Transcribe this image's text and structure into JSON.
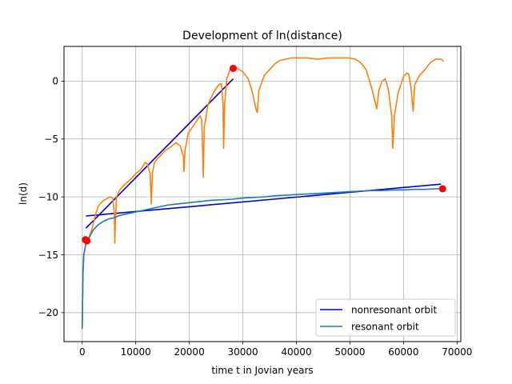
{
  "chart_data": {
    "type": "line",
    "title": "Development of ln(distance)",
    "xlabel": "time t in Jovian years",
    "ylabel": "ln(d)",
    "xlim": [
      -3400,
      70700
    ],
    "ylim": [
      -22.5,
      3.0
    ],
    "xticks": [
      0,
      10000,
      20000,
      30000,
      40000,
      50000,
      60000,
      70000
    ],
    "xtick_labels": [
      "0",
      "10000",
      "20000",
      "30000",
      "40000",
      "50000",
      "60000",
      "70000"
    ],
    "yticks": [
      -20,
      -15,
      -10,
      -5,
      0
    ],
    "ytick_labels": [
      "−20",
      "−15",
      "−10",
      "−5",
      "0"
    ],
    "grid": true,
    "legend_position": "lower-right",
    "legend": [
      {
        "label": "nonresonant orbit",
        "color": "#0000cc"
      },
      {
        "label": "resonant orbit",
        "color": "#1f77b4"
      }
    ],
    "series": [
      {
        "kind": "fit-line",
        "color": "#0000cc",
        "points": [
          [
            700,
            -12.7
          ],
          [
            28200,
            0.2
          ]
        ]
      },
      {
        "kind": "fit-line",
        "color": "#0000cc",
        "points": [
          [
            700,
            -11.65
          ],
          [
            67000,
            -8.9
          ]
        ]
      },
      {
        "kind": "curve",
        "color": "#ff7f0e",
        "points": [
          [
            0,
            -21.4
          ],
          [
            150,
            -16.5
          ],
          [
            300,
            -15.0
          ],
          [
            700,
            -14.0
          ],
          [
            1200,
            -13.6
          ],
          [
            1800,
            -12.8
          ],
          [
            2500,
            -11.5
          ],
          [
            3000,
            -10.8
          ],
          [
            3500,
            -10.5
          ],
          [
            4000,
            -10.3
          ],
          [
            4800,
            -10.1
          ],
          [
            5200,
            -10.0
          ],
          [
            5700,
            -10.1
          ],
          [
            6000,
            -11.5
          ],
          [
            6100,
            -14.0
          ],
          [
            6200,
            -12.0
          ],
          [
            6400,
            -10.0
          ],
          [
            7000,
            -9.4
          ],
          [
            8000,
            -8.9
          ],
          [
            9000,
            -8.5
          ],
          [
            10000,
            -8.0
          ],
          [
            11000,
            -7.6
          ],
          [
            11800,
            -7.0
          ],
          [
            12200,
            -7.2
          ],
          [
            12700,
            -8.0
          ],
          [
            12900,
            -10.6
          ],
          [
            13100,
            -8.0
          ],
          [
            13500,
            -7.0
          ],
          [
            14500,
            -6.5
          ],
          [
            15500,
            -6.0
          ],
          [
            16500,
            -5.7
          ],
          [
            17500,
            -5.3
          ],
          [
            18300,
            -5.6
          ],
          [
            18900,
            -6.5
          ],
          [
            19000,
            -7.8
          ],
          [
            19200,
            -6.0
          ],
          [
            19800,
            -4.5
          ],
          [
            21000,
            -3.7
          ],
          [
            22000,
            -3.0
          ],
          [
            22300,
            -3.3
          ],
          [
            22500,
            -6.0
          ],
          [
            22600,
            -8.3
          ],
          [
            22800,
            -4.0
          ],
          [
            23500,
            -2.0
          ],
          [
            24500,
            -1.0
          ],
          [
            25500,
            -0.3
          ],
          [
            26000,
            -0.2
          ],
          [
            26300,
            -2.0
          ],
          [
            26400,
            -5.8
          ],
          [
            26600,
            -2.0
          ],
          [
            27000,
            0.2
          ],
          [
            27600,
            1.0
          ],
          [
            28200,
            1.1
          ],
          [
            29000,
            1.1
          ],
          [
            30000,
            0.8
          ],
          [
            31000,
            0.2
          ],
          [
            31800,
            -1.0
          ],
          [
            32500,
            -2.5
          ],
          [
            32700,
            -2.7
          ],
          [
            33000,
            -0.8
          ],
          [
            34000,
            0.5
          ],
          [
            35000,
            1.0
          ],
          [
            36000,
            1.5
          ],
          [
            37000,
            1.8
          ],
          [
            38000,
            1.9
          ],
          [
            39000,
            2.0
          ],
          [
            40000,
            2.0
          ],
          [
            42000,
            2.0
          ],
          [
            44000,
            1.9
          ],
          [
            46000,
            2.0
          ],
          [
            48000,
            2.0
          ],
          [
            50000,
            2.0
          ],
          [
            51000,
            1.9
          ],
          [
            52000,
            1.6
          ],
          [
            53000,
            1.0
          ],
          [
            54000,
            -0.5
          ],
          [
            54600,
            -1.6
          ],
          [
            55000,
            -2.4
          ],
          [
            55400,
            -0.8
          ],
          [
            56000,
            0.0
          ],
          [
            56600,
            0.2
          ],
          [
            57200,
            -0.8
          ],
          [
            57800,
            -3.0
          ],
          [
            58000,
            -5.8
          ],
          [
            58300,
            -3.0
          ],
          [
            59000,
            -1.0
          ],
          [
            60000,
            0.4
          ],
          [
            60600,
            0.7
          ],
          [
            61000,
            0.6
          ],
          [
            61400,
            -0.6
          ],
          [
            61800,
            -2.6
          ],
          [
            62100,
            -0.3
          ],
          [
            63000,
            0.5
          ],
          [
            64000,
            1.0
          ],
          [
            65000,
            1.6
          ],
          [
            66000,
            1.9
          ],
          [
            67000,
            1.9
          ],
          [
            67500,
            1.7
          ]
        ]
      },
      {
        "kind": "curve",
        "color": "#1f77b4",
        "points": [
          [
            0,
            -21.4
          ],
          [
            150,
            -16.5
          ],
          [
            300,
            -15.0
          ],
          [
            700,
            -14.0
          ],
          [
            1200,
            -13.6
          ],
          [
            2000,
            -12.9
          ],
          [
            3000,
            -12.4
          ],
          [
            4000,
            -12.1
          ],
          [
            5000,
            -11.9
          ],
          [
            6000,
            -11.8
          ],
          [
            7000,
            -11.6
          ],
          [
            8000,
            -11.5
          ],
          [
            10000,
            -11.3
          ],
          [
            12000,
            -11.1
          ],
          [
            14000,
            -10.9
          ],
          [
            16000,
            -10.7
          ],
          [
            18000,
            -10.6
          ],
          [
            20000,
            -10.5
          ],
          [
            22000,
            -10.4
          ],
          [
            24000,
            -10.3
          ],
          [
            26000,
            -10.25
          ],
          [
            28000,
            -10.2
          ],
          [
            30000,
            -10.1
          ],
          [
            32000,
            -10.05
          ],
          [
            34000,
            -10.0
          ],
          [
            36000,
            -9.9
          ],
          [
            38000,
            -9.85
          ],
          [
            40000,
            -9.8
          ],
          [
            42000,
            -9.75
          ],
          [
            44000,
            -9.7
          ],
          [
            46000,
            -9.65
          ],
          [
            48000,
            -9.6
          ],
          [
            50000,
            -9.55
          ],
          [
            52000,
            -9.5
          ],
          [
            54000,
            -9.45
          ],
          [
            56000,
            -9.45
          ],
          [
            58000,
            -9.4
          ],
          [
            60000,
            -9.4
          ],
          [
            62000,
            -9.35
          ],
          [
            64000,
            -9.35
          ],
          [
            66000,
            -9.3
          ],
          [
            67300,
            -9.3
          ]
        ]
      }
    ],
    "markers": [
      {
        "x": 600,
        "y": -13.7,
        "color": "#ff0000"
      },
      {
        "x": 900,
        "y": -13.8,
        "color": "#ff0000"
      },
      {
        "x": 28200,
        "y": 1.1,
        "color": "#ff0000"
      },
      {
        "x": 67300,
        "y": -9.3,
        "color": "#ff0000"
      }
    ]
  }
}
